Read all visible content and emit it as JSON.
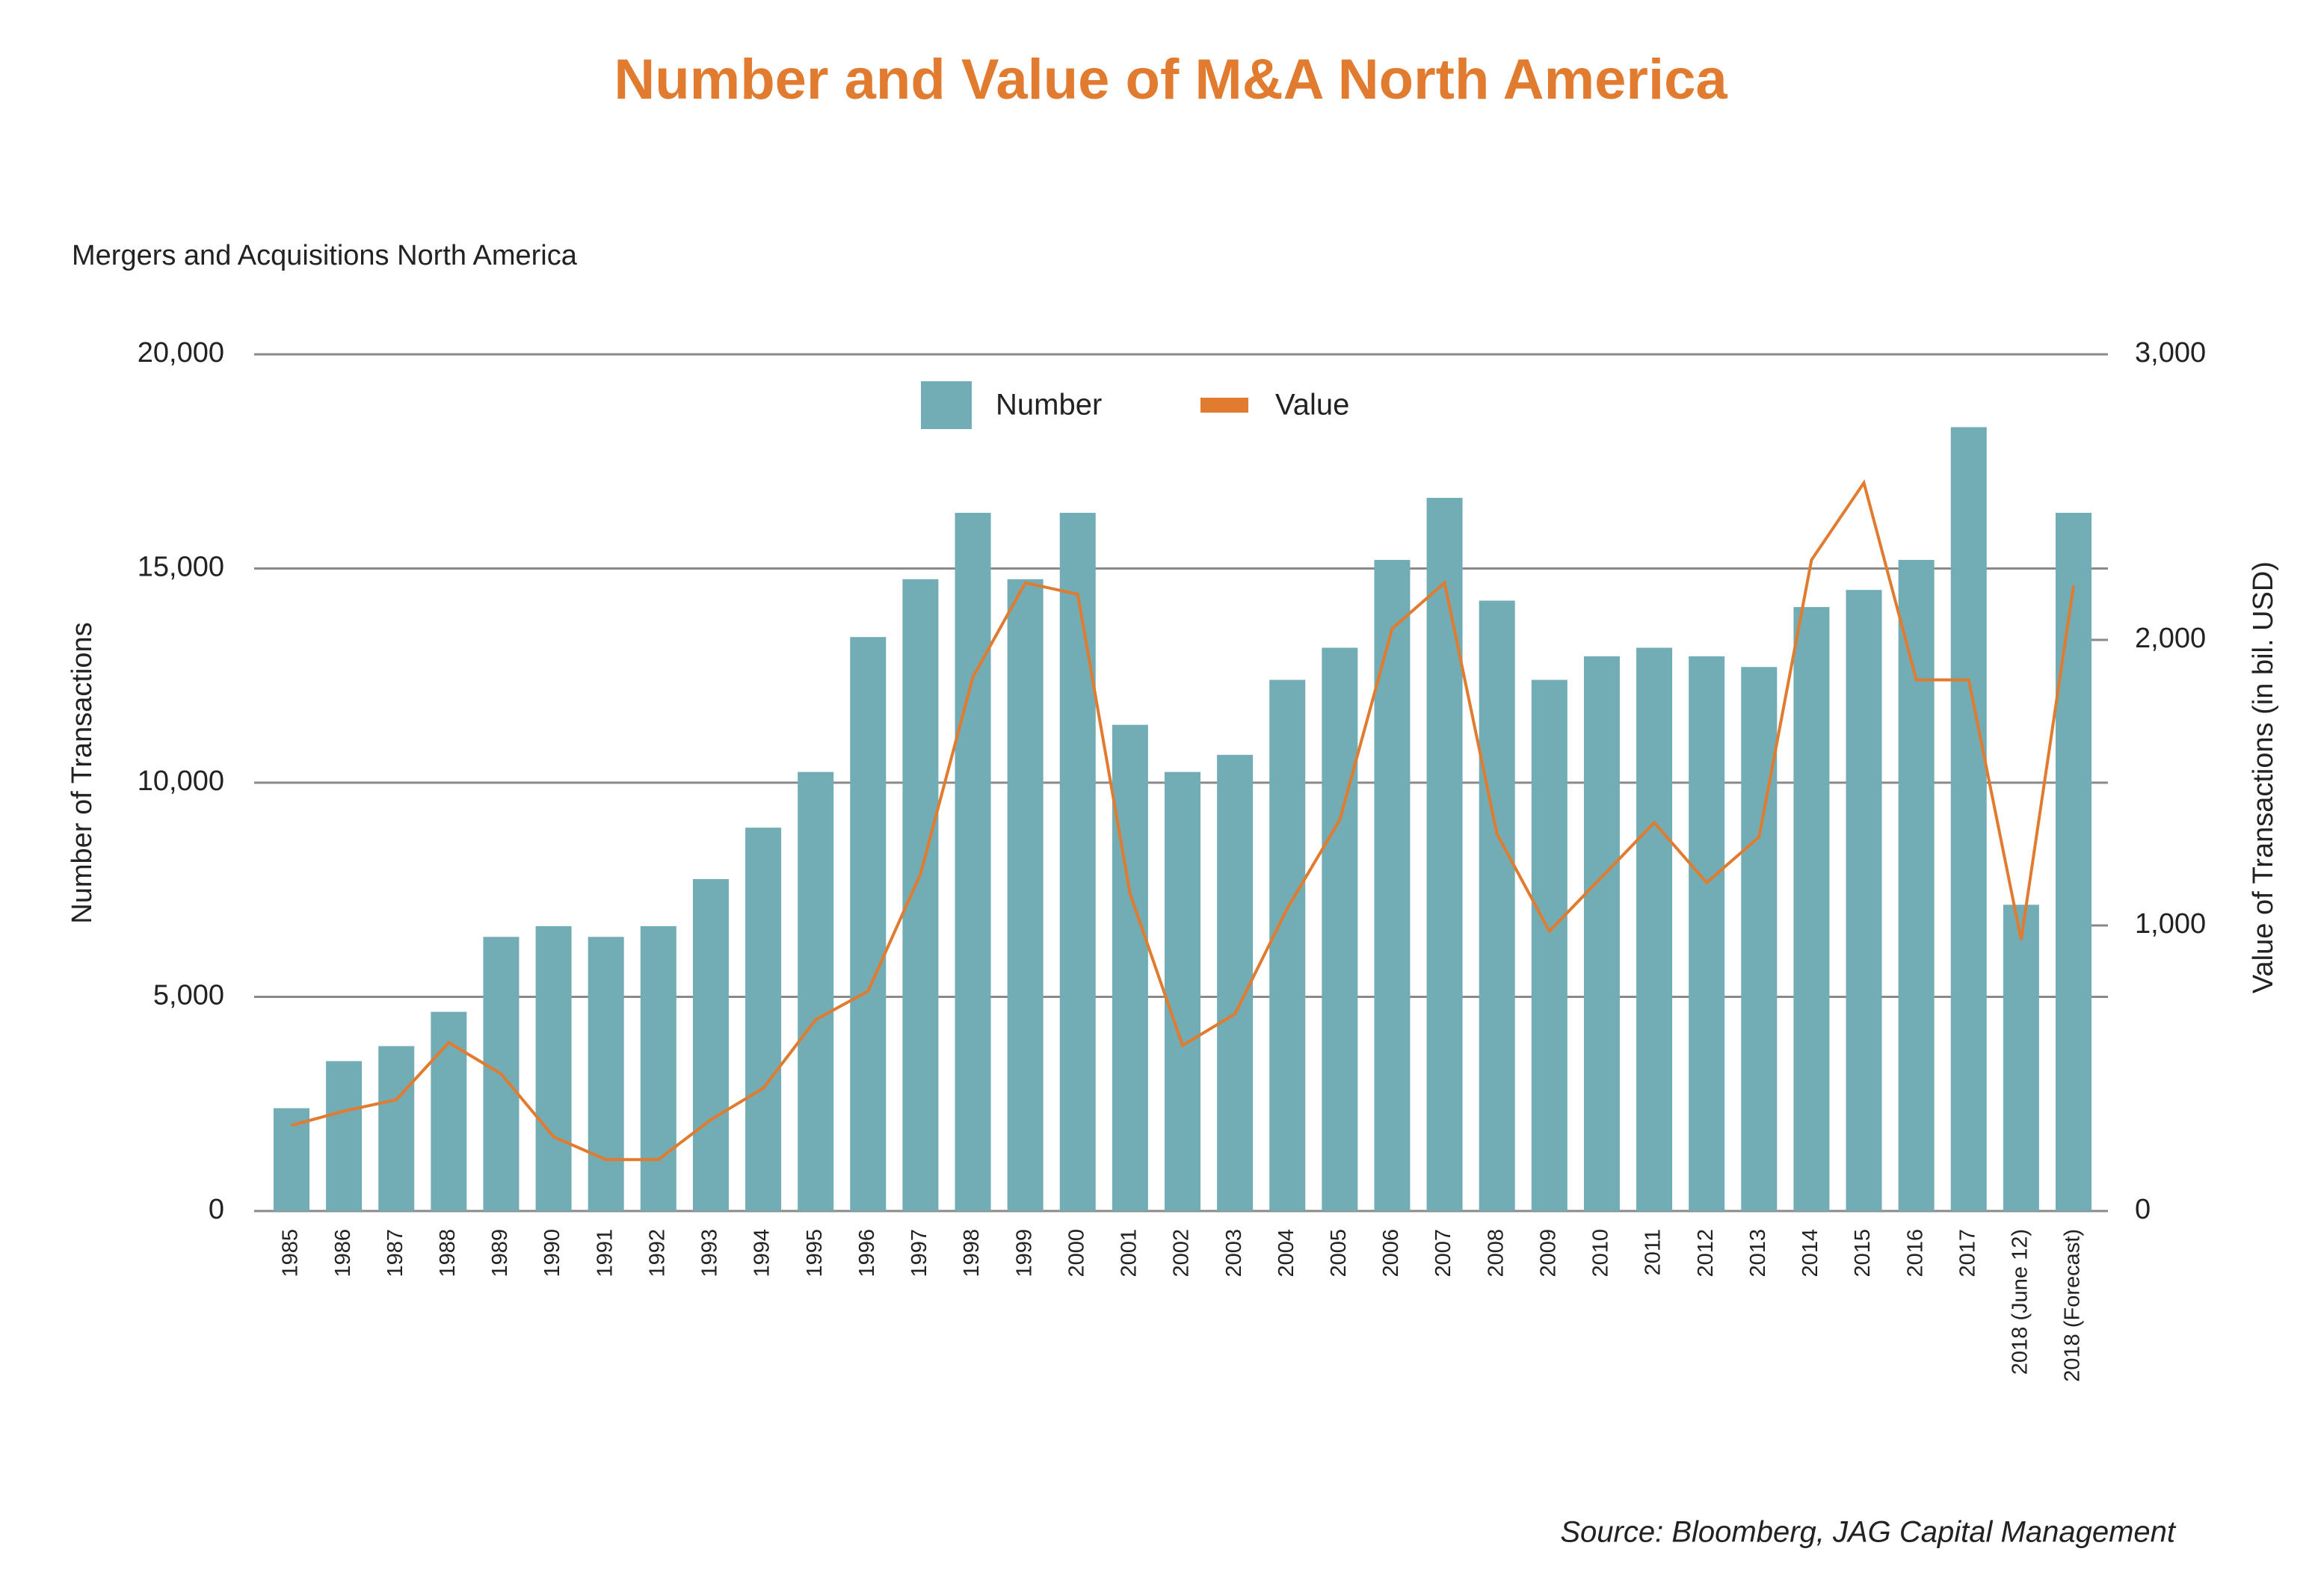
{
  "chart_data": {
    "type": "bar",
    "title": "Number and Value of M&A North America",
    "subtitle": "Mergers and Acquisitions North America",
    "y_label": "Number of Transactions",
    "y2_label": "Value of Transactions (in bil. USD)",
    "source": "Source: Bloomberg, JAG Capital Management",
    "categories": [
      "1985",
      "1986",
      "1987",
      "1988",
      "1989",
      "1990",
      "1991",
      "1992",
      "1993",
      "1994",
      "1995",
      "1996",
      "1997",
      "1998",
      "1999",
      "2000",
      "2001",
      "2002",
      "2003",
      "2004",
      "2005",
      "2006",
      "2007",
      "2008",
      "2009",
      "2010",
      "2011",
      "2012",
      "2013",
      "2014",
      "2015",
      "2016",
      "2017",
      "2018 (June 12)",
      "2018 (Forecast)"
    ],
    "series": [
      {
        "name": "Number",
        "type": "bar",
        "color": "#72adb5",
        "values": [
          2400,
          3500,
          3850,
          4650,
          6400,
          6650,
          6400,
          6650,
          7750,
          8950,
          10250,
          13400,
          14750,
          16300,
          14750,
          16300,
          11350,
          10250,
          10650,
          12400,
          13150,
          15200,
          16650,
          14250,
          12400,
          12950,
          13150,
          12950,
          12700,
          14100,
          14500,
          15200,
          18300,
          7150,
          16300
        ]
      },
      {
        "name": "Value",
        "type": "line",
        "axis": "y2",
        "color": "#e07b2f",
        "values": [
          300,
          350,
          390,
          590,
          480,
          260,
          180,
          180,
          320,
          430,
          670,
          770,
          1180,
          1870,
          2200,
          2160,
          1110,
          580,
          690,
          1060,
          1370,
          2040,
          2200,
          1320,
          980,
          1170,
          1360,
          1150,
          1310,
          2280,
          2550,
          1860,
          1860,
          950,
          2190
        ]
      }
    ],
    "ylim": [
      0,
      20000
    ],
    "yticks": [
      0,
      {
        "value": 5000,
        "label": "5,000"
      },
      {
        "value": 10000,
        "label": "10,000"
      },
      {
        "value": 15000,
        "label": "15,000"
      },
      {
        "value": 20000,
        "label": "20,000"
      }
    ],
    "y2lim": [
      0,
      3000
    ],
    "y2ticks": [
      0,
      {
        "value": 1000,
        "label": "1,000"
      },
      {
        "value": 2000,
        "label": "2,000"
      },
      {
        "value": 3000,
        "label": "3,000"
      }
    ],
    "grid": true,
    "legend": "top"
  }
}
